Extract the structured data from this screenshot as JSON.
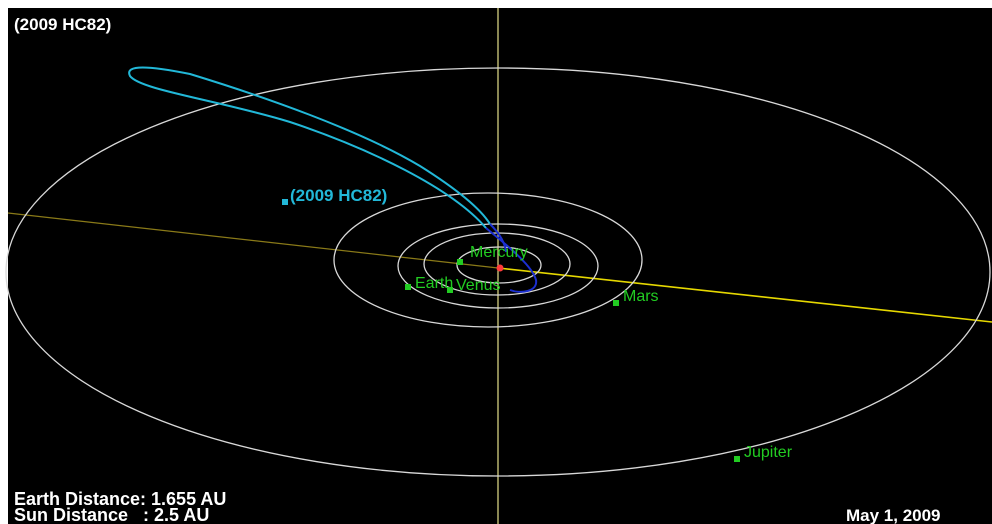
{
  "title": "(2009 HC82)",
  "asteroid": {
    "label": "(2009 HC82)",
    "color": "#22b8d8"
  },
  "planets": [
    {
      "key": "mercury",
      "label": "Mercury"
    },
    {
      "key": "venus",
      "label": "Venus"
    },
    {
      "key": "earth",
      "label": "Earth"
    },
    {
      "key": "mars",
      "label": "Mars"
    },
    {
      "key": "jupiter",
      "label": "Jupiter"
    }
  ],
  "status": {
    "earth_distance": "Earth Distance: 1.655 AU",
    "sun_distance": "Sun Distance   : 2.5 AU",
    "date": "May 1, 2009"
  },
  "colors": {
    "background": "#000000",
    "orbit": "#d8d8d8",
    "planet": "#22cc22",
    "sun": "#ff3b3b",
    "vertical_axis": "#e6e08a",
    "ecliptic_axis": "#d8c800",
    "asteroid_far_orbit": "#22b8d8",
    "asteroid_near_orbit": "#1c2fd0",
    "text": "#ffffff"
  }
}
